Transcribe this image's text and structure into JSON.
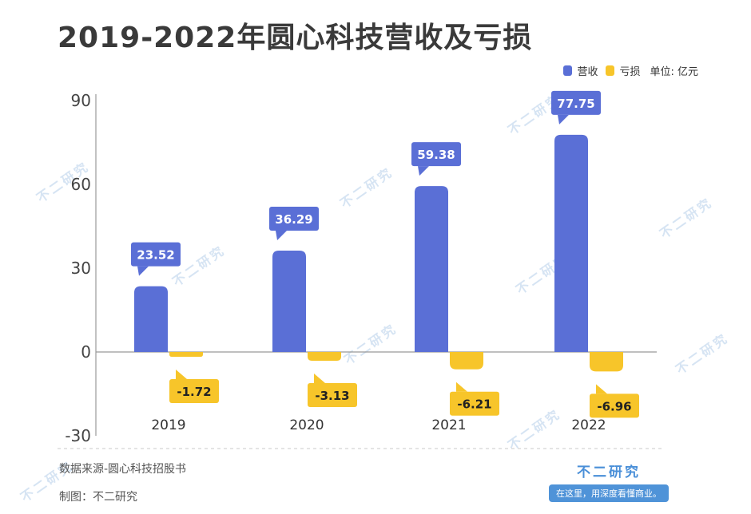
{
  "title": "2019-2022年圆心科技营收及亏损",
  "legend": {
    "revenue": "营收",
    "loss": "亏损",
    "unit": "单位: 亿元"
  },
  "colors": {
    "revenue": "#5a6fd6",
    "loss": "#f7c52a",
    "axis": "#999999",
    "text": "#333333"
  },
  "chart_data": {
    "type": "bar",
    "categories": [
      "2019",
      "2020",
      "2021",
      "2022"
    ],
    "series": [
      {
        "name": "营收",
        "values": [
          23.52,
          36.29,
          59.38,
          77.75
        ]
      },
      {
        "name": "亏损",
        "values": [
          -1.72,
          -3.13,
          -6.21,
          -6.96
        ]
      }
    ],
    "data_labels": [
      [
        "23.52",
        "36.29",
        "59.38",
        "77.75"
      ],
      [
        "-1.72",
        "-3.13",
        "-6.21",
        "-6.96"
      ]
    ],
    "yticks": [
      "90",
      "60",
      "30",
      "0",
      "-30"
    ],
    "ylim": [
      -30,
      90
    ],
    "grid": false,
    "legend_position": "top-right"
  },
  "footer": {
    "source": "数据来源-圆心科技招股书",
    "maker": "制图：不二研究"
  },
  "brand": {
    "name": "不二研究",
    "slogan": "在这里，用深度看懂商业。"
  },
  "watermark": "不二研究"
}
